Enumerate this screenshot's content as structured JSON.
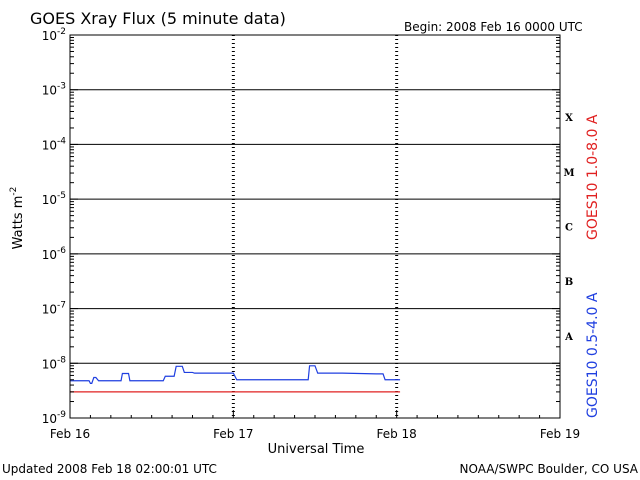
{
  "colors": {
    "long_channel": "#e02020",
    "short_channel": "#1f3fe0",
    "frame": "#000000",
    "background": "#ffffff"
  },
  "chart_data": {
    "type": "line",
    "title": "GOES Xray Flux (5 minute data)",
    "begin_label": "Begin:  2008 Feb 16 0000 UTC",
    "xlabel": "Universal Time",
    "ylabel_base": "Watts m",
    "ylabel_exp": "-2",
    "updated_label": "Updated 2008 Feb 18 02:00:01 UTC",
    "credit_label": "NOAA/SWPC Boulder, CO USA",
    "y_scale": "log",
    "ylim": [
      1e-09,
      0.01
    ],
    "xlim": [
      0,
      72
    ],
    "x_unit": "hours since 2008 Feb 16 00:00 UTC",
    "x_ticks": [
      {
        "value": 0,
        "label": "Feb 16"
      },
      {
        "value": 24,
        "label": "Feb 17"
      },
      {
        "value": 48,
        "label": "Feb 18"
      },
      {
        "value": 72,
        "label": "Feb 19"
      }
    ],
    "y_ticks": [
      {
        "exp": -9,
        "label": "10",
        "sup": "-9"
      },
      {
        "exp": -8,
        "label": "10",
        "sup": "-8"
      },
      {
        "exp": -7,
        "label": "10",
        "sup": "-7"
      },
      {
        "exp": -6,
        "label": "10",
        "sup": "-6"
      },
      {
        "exp": -5,
        "label": "10",
        "sup": "-5"
      },
      {
        "exp": -4,
        "label": "10",
        "sup": "-4"
      },
      {
        "exp": -3,
        "label": "10",
        "sup": "-3"
      },
      {
        "exp": -2,
        "label": "10",
        "sup": "-2"
      }
    ],
    "flare_classes": [
      {
        "label": "A",
        "exp": -7.5
      },
      {
        "label": "B",
        "exp": -6.5
      },
      {
        "label": "C",
        "exp": -5.5
      },
      {
        "label": "M",
        "exp": -4.5
      },
      {
        "label": "X",
        "exp": -3.5
      }
    ],
    "grid": "horizontal lines at each decade from 1e-8 to 1e-3; dashed vertical lines at day boundaries",
    "series": [
      {
        "name": "GOES10 1.0-8.0 A",
        "color": "#e02020",
        "x": [
          0.0,
          48.5
        ],
        "y": [
          3e-09,
          3e-09
        ]
      },
      {
        "name": "GOES10 0.5-4.0 A",
        "color": "#1f3fe0",
        "x": [
          0.0,
          2.8,
          3.0,
          3.2,
          3.5,
          3.8,
          4.2,
          7.5,
          7.7,
          8.6,
          8.8,
          13.7,
          14.0,
          15.3,
          15.6,
          16.5,
          16.8,
          18.0,
          18.3,
          24.0,
          24.5,
          35.0,
          35.2,
          36.0,
          36.4,
          40.0,
          45.0,
          46.0,
          46.3,
          48.5
        ],
        "y": [
          4.8e-09,
          4.8e-09,
          4.3e-09,
          4.3e-09,
          5.5e-09,
          5.5e-09,
          4.8e-09,
          4.8e-09,
          6.5e-09,
          6.5e-09,
          4.8e-09,
          4.8e-09,
          5.8e-09,
          5.8e-09,
          8.8e-09,
          8.8e-09,
          6.8e-09,
          6.8e-09,
          6.6e-09,
          6.6e-09,
          5e-09,
          5e-09,
          9e-09,
          9e-09,
          6.6e-09,
          6.6e-09,
          6.4e-09,
          6.4e-09,
          5e-09,
          5e-09
        ]
      }
    ]
  }
}
